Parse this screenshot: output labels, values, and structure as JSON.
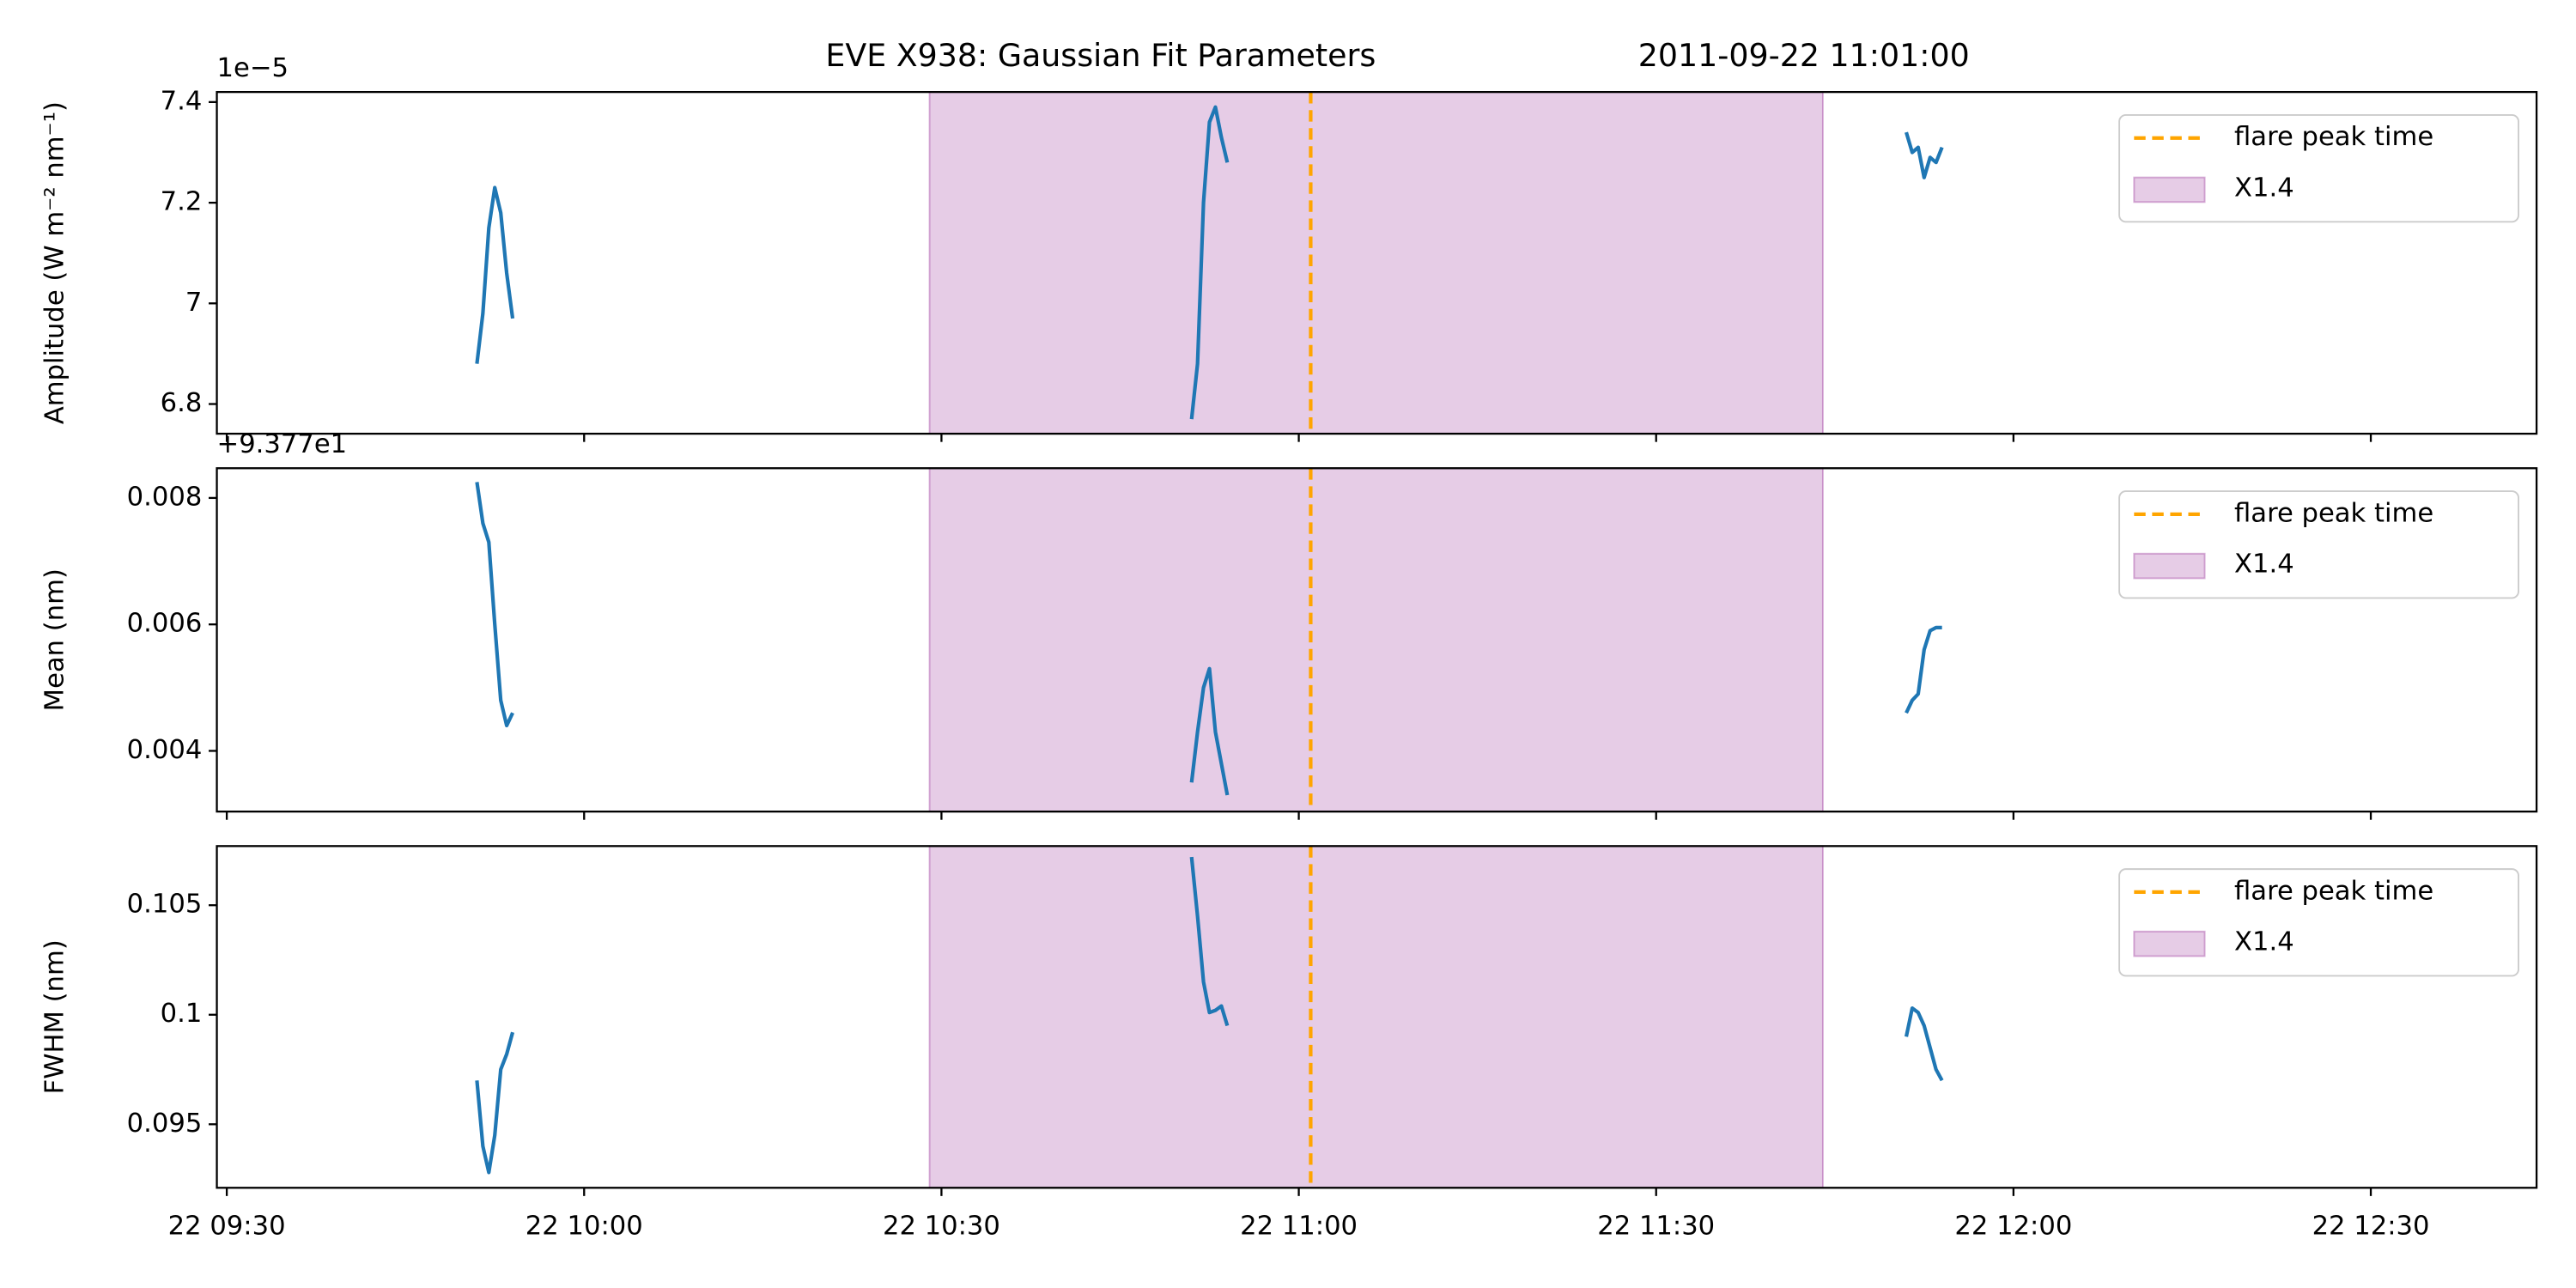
{
  "title": "EVE X938: Gaussian Fit Parameters",
  "subtitle": "2011-09-22 11:01:00",
  "chart_data": [
    {
      "type": "line",
      "ylabel": "Amplitude (W m⁻² nm⁻¹)",
      "offset_text": "1e−5",
      "x": [
        "22 09:51:00",
        "22 09:51:30",
        "22 09:52:00",
        "22 09:52:30",
        "22 09:53:00",
        "22 09:53:30",
        "22 09:54:00",
        null,
        "22 10:51:00",
        "22 10:51:30",
        "22 10:52:00",
        "22 10:52:30",
        "22 10:53:00",
        "22 10:53:30",
        "22 10:54:00",
        null,
        "22 11:51:00",
        "22 11:51:30",
        "22 11:52:00",
        "22 11:52:30",
        "22 11:53:00",
        "22 11:53:30",
        "22 11:54:00"
      ],
      "values": [
        6.88,
        6.98,
        7.15,
        7.23,
        7.18,
        7.06,
        6.97,
        null,
        6.77,
        6.88,
        7.2,
        7.36,
        7.39,
        7.33,
        7.28,
        null,
        7.34,
        7.3,
        7.31,
        7.25,
        7.29,
        7.28,
        7.31
      ],
      "color": "#1f77b4",
      "xlim": [
        "22 09:29:10",
        "22 12:43:55"
      ],
      "xticks": [
        "22 09:30",
        "22 10:00",
        "22 10:30",
        "22 11:00",
        "22 11:30",
        "22 12:00",
        "22 12:30"
      ],
      "show_xticklabels": false,
      "ylim": [
        6.741,
        7.42
      ],
      "yticks": [
        6.8,
        7.0,
        7.2,
        7.4
      ],
      "vline": {
        "x": "22 11:01",
        "label": "flare peak time",
        "color": "#ffa500"
      },
      "span": {
        "start": "22 10:29",
        "end": "22 11:44",
        "label": "X1.4",
        "color": "#800080",
        "alpha": 0.2
      },
      "legend": "upper right"
    },
    {
      "type": "line",
      "ylabel": "Mean (nm)",
      "offset_text": "+9.377e1",
      "x": [
        "22 09:51:00",
        "22 09:51:30",
        "22 09:52:00",
        "22 09:52:30",
        "22 09:53:00",
        "22 09:53:30",
        "22 09:54:00",
        null,
        "22 10:51:00",
        "22 10:51:30",
        "22 10:52:00",
        "22 10:52:30",
        "22 10:53:00",
        "22 10:53:30",
        "22 10:54:00",
        null,
        "22 11:51:00",
        "22 11:51:30",
        "22 11:52:00",
        "22 11:52:30",
        "22 11:53:00",
        "22 11:53:30",
        "22 11:54:00"
      ],
      "values": [
        0.00825,
        0.0076,
        0.0073,
        0.006,
        0.0048,
        0.0044,
        0.0046,
        null,
        0.0035,
        0.0043,
        0.005,
        0.0053,
        0.0043,
        0.0038,
        0.0033,
        null,
        0.0046,
        0.0048,
        0.0049,
        0.0056,
        0.0059,
        0.00595,
        0.00595
      ],
      "color": "#1f77b4",
      "xlim": [
        "22 09:29:10",
        "22 12:43:55"
      ],
      "xticks": [
        "22 09:30",
        "22 10:00",
        "22 10:30",
        "22 11:00",
        "22 11:30",
        "22 12:00",
        "22 12:30"
      ],
      "show_xticklabels": false,
      "ylim": [
        0.00304,
        0.00847
      ],
      "yticks": [
        0.004,
        0.006,
        0.008
      ],
      "vline": {
        "x": "22 11:01",
        "label": "flare peak time",
        "color": "#ffa500"
      },
      "span": {
        "start": "22 10:29",
        "end": "22 11:44",
        "label": "X1.4",
        "color": "#800080",
        "alpha": 0.2
      },
      "legend": "upper right"
    },
    {
      "type": "line",
      "ylabel": "FWHM (nm)",
      "x": [
        "22 09:51:00",
        "22 09:51:30",
        "22 09:52:00",
        "22 09:52:30",
        "22 09:53:00",
        "22 09:53:30",
        "22 09:54:00",
        null,
        "22 10:51:00",
        "22 10:51:30",
        "22 10:52:00",
        "22 10:52:30",
        "22 10:53:00",
        "22 10:53:30",
        "22 10:54:00",
        null,
        "22 11:51:00",
        "22 11:51:30",
        "22 11:52:00",
        "22 11:52:30",
        "22 11:53:00",
        "22 11:53:30",
        "22 11:54:00"
      ],
      "values": [
        0.097,
        0.094,
        0.0928,
        0.0945,
        0.0975,
        0.0982,
        0.0992,
        null,
        0.1072,
        0.1045,
        0.1015,
        0.1001,
        0.1002,
        0.1004,
        0.0995,
        null,
        0.099,
        0.1003,
        0.1001,
        0.0995,
        0.0985,
        0.0975,
        0.097
      ],
      "color": "#1f77b4",
      "xlim": [
        "22 09:29:10",
        "22 12:43:55"
      ],
      "xticks": [
        "22 09:30",
        "22 10:00",
        "22 10:30",
        "22 11:00",
        "22 11:30",
        "22 12:00",
        "22 12:30"
      ],
      "show_xticklabels": true,
      "ylim": [
        0.0921,
        0.1077
      ],
      "yticks": [
        0.095,
        0.1,
        0.105
      ],
      "vline": {
        "x": "22 11:01",
        "label": "flare peak time",
        "color": "#ffa500"
      },
      "span": {
        "start": "22 10:29",
        "end": "22 11:44",
        "label": "X1.4",
        "color": "#800080",
        "alpha": 0.2
      },
      "legend": "upper right"
    }
  ]
}
